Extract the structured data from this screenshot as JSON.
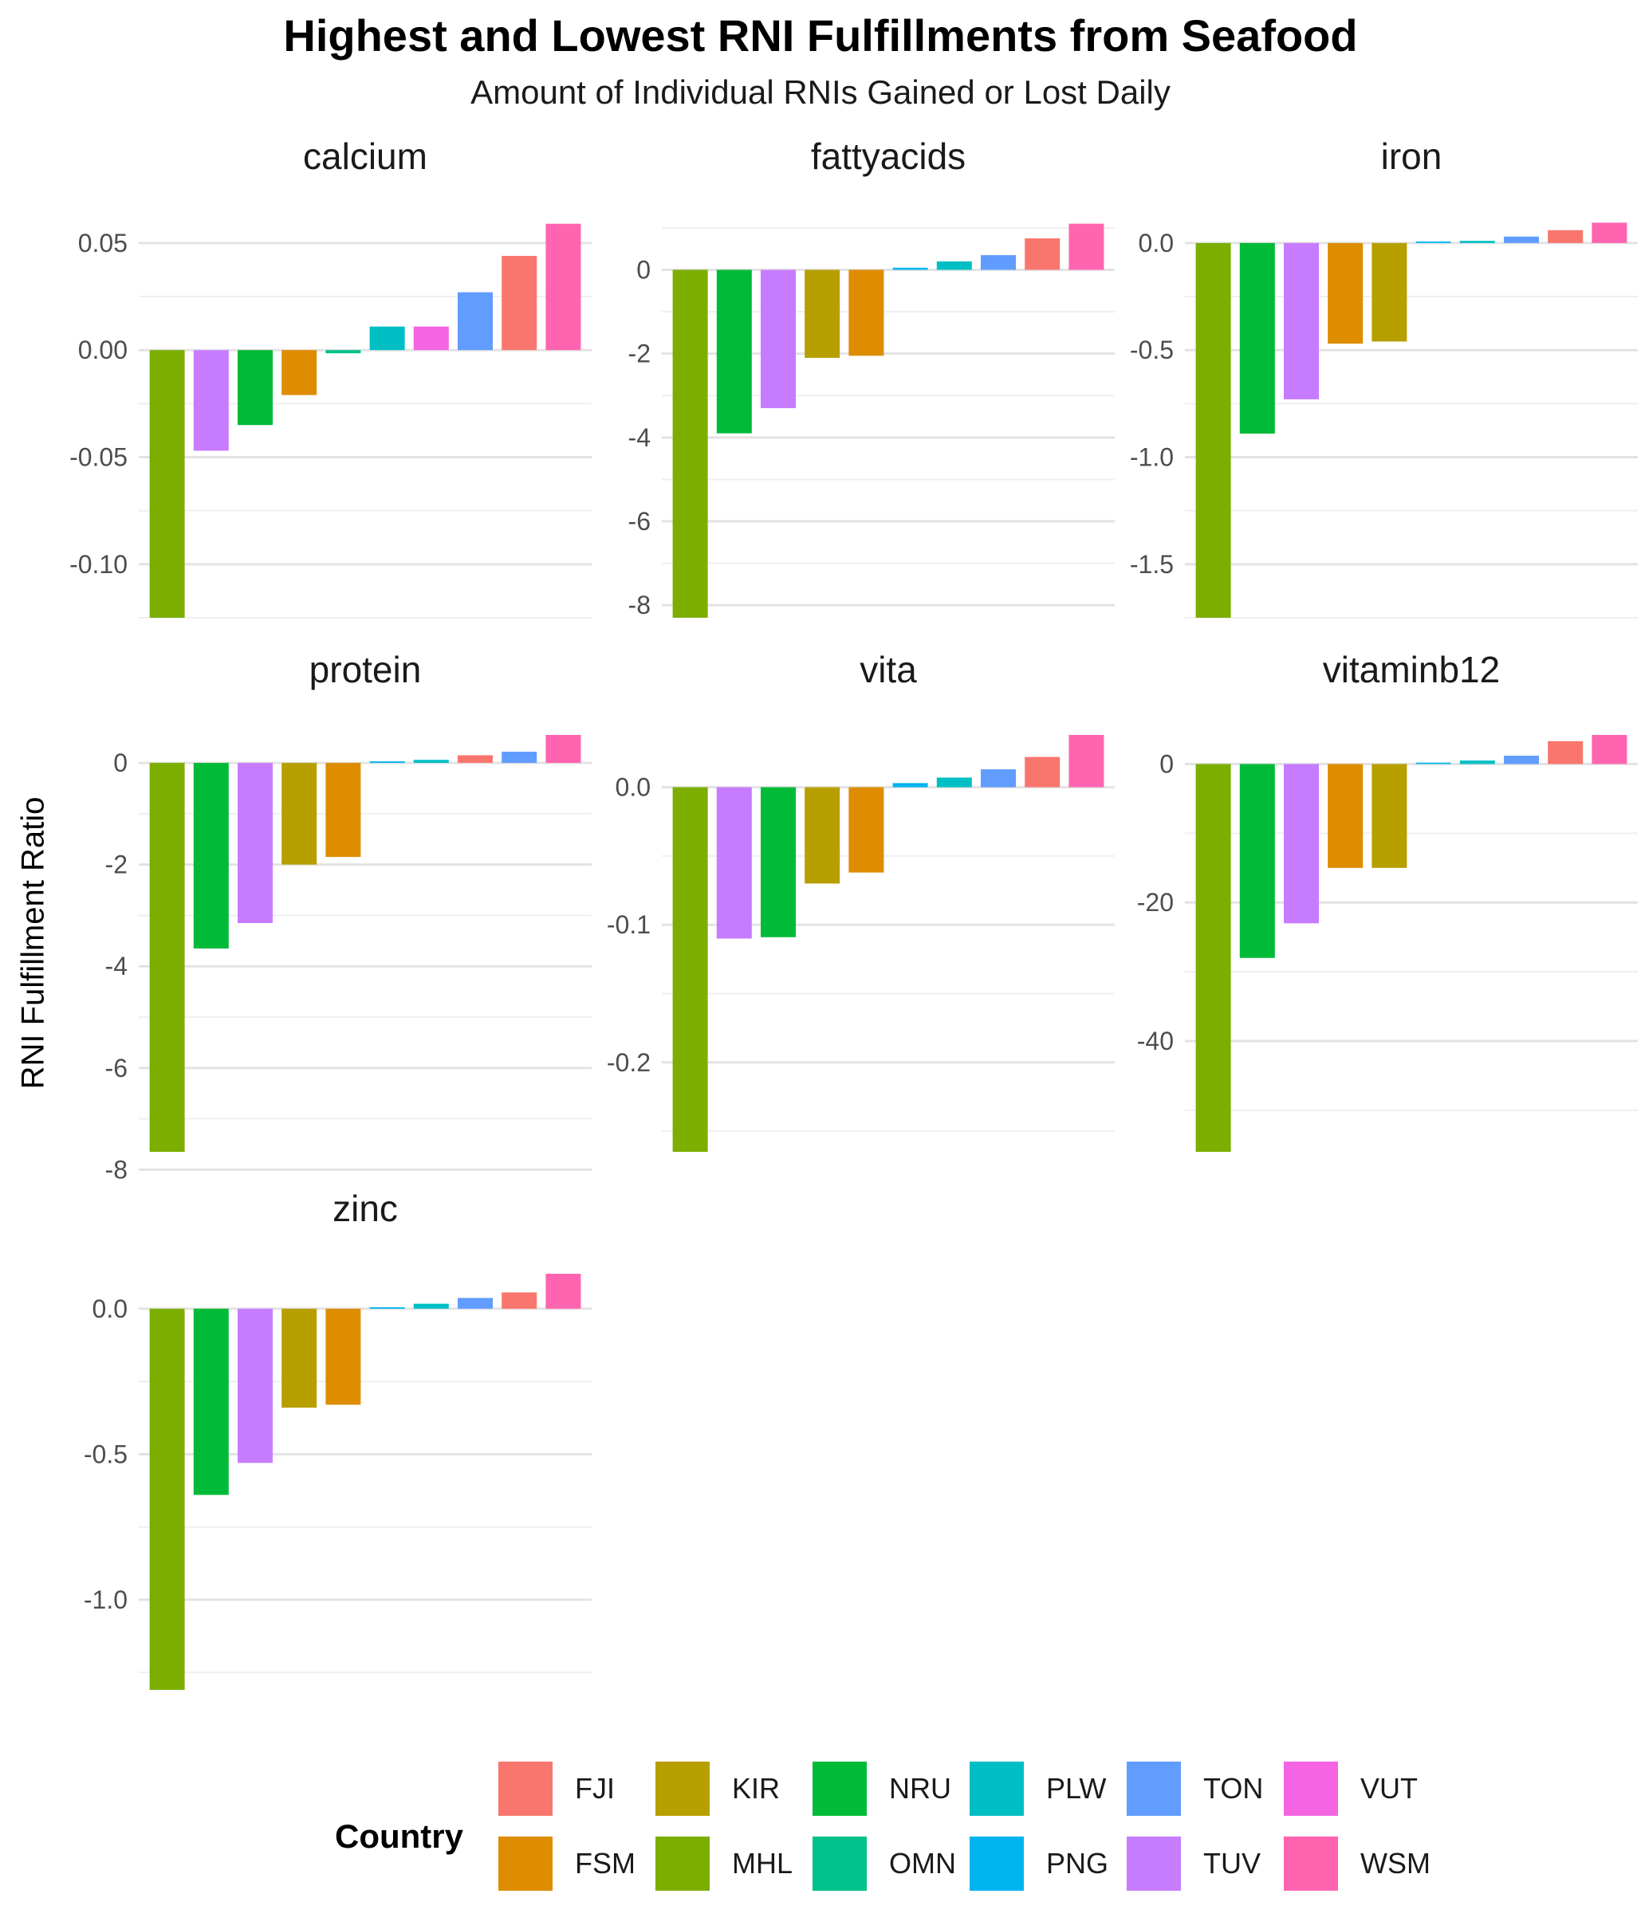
{
  "chart_data": {
    "type": "bar",
    "title": "Highest and Lowest RNI Fulfillments from Seafood",
    "subtitle": "Amount of Individual RNIs Gained or Lost Daily",
    "ylabel": "RNI Fulfillment Ratio",
    "xlabel": "",
    "legend_title": "Country",
    "legend_position": "bottom",
    "colors": {
      "FJI": "#F8766D",
      "FSM": "#DE8C00",
      "KIR": "#B79F00",
      "MHL": "#7CAE00",
      "NRU": "#00BA38",
      "OMN": "#00C08B",
      "PLW": "#00BFC4",
      "PNG": "#00B4F0",
      "TON": "#619CFF",
      "TUV": "#C77CFF",
      "VUT": "#F564E3",
      "WSM": "#FF64B0"
    },
    "legend_order": [
      "FJI",
      "FSM",
      "KIR",
      "MHL",
      "NRU",
      "OMN",
      "PLW",
      "PNG",
      "TON",
      "TUV",
      "VUT",
      "WSM"
    ],
    "panels": [
      {
        "name": "calcium",
        "ylim": [
          -0.125,
          0.06
        ],
        "ticks": [
          0.05,
          0.0,
          -0.05,
          -0.1
        ],
        "tick_labels": [
          "0.05",
          "0.00",
          "-0.05",
          "-0.10"
        ],
        "bars": [
          {
            "country": "MHL",
            "value": -0.125
          },
          {
            "country": "TUV",
            "value": -0.047
          },
          {
            "country": "NRU",
            "value": -0.035
          },
          {
            "country": "FSM",
            "value": -0.021
          },
          {
            "country": "OMN",
            "value": -0.0015
          },
          {
            "country": "PLW",
            "value": 0.011
          },
          {
            "country": "VUT",
            "value": 0.011
          },
          {
            "country": "TON",
            "value": 0.027
          },
          {
            "country": "FJI",
            "value": 0.044
          },
          {
            "country": "WSM",
            "value": 0.059
          }
        ]
      },
      {
        "name": "fattyacids",
        "ylim": [
          -8.3,
          1.15
        ],
        "ticks": [
          0,
          -2,
          -4,
          -6,
          -8
        ],
        "tick_labels": [
          "0",
          "-2",
          "-4",
          "-6",
          "-8"
        ],
        "bars": [
          {
            "country": "MHL",
            "value": -8.3
          },
          {
            "country": "NRU",
            "value": -3.9
          },
          {
            "country": "TUV",
            "value": -3.3
          },
          {
            "country": "KIR",
            "value": -2.1
          },
          {
            "country": "FSM",
            "value": -2.05
          },
          {
            "country": "PNG",
            "value": 0.05
          },
          {
            "country": "PLW",
            "value": 0.2
          },
          {
            "country": "TON",
            "value": 0.35
          },
          {
            "country": "FJI",
            "value": 0.75
          },
          {
            "country": "WSM",
            "value": 1.1
          }
        ]
      },
      {
        "name": "iron",
        "ylim": [
          -1.75,
          0.1
        ],
        "ticks": [
          0.0,
          -0.5,
          -1.0,
          -1.5
        ],
        "tick_labels": [
          "0.0",
          "-0.5",
          "-1.0",
          "-1.5"
        ],
        "bars": [
          {
            "country": "MHL",
            "value": -1.75
          },
          {
            "country": "NRU",
            "value": -0.89
          },
          {
            "country": "TUV",
            "value": -0.73
          },
          {
            "country": "FSM",
            "value": -0.47
          },
          {
            "country": "KIR",
            "value": -0.46
          },
          {
            "country": "PNG",
            "value": 0.007
          },
          {
            "country": "PLW",
            "value": 0.01
          },
          {
            "country": "TON",
            "value": 0.03
          },
          {
            "country": "FJI",
            "value": 0.06
          },
          {
            "country": "WSM",
            "value": 0.095
          }
        ]
      },
      {
        "name": "protein",
        "ylim": [
          -7.65,
          0.55
        ],
        "ticks": [
          0,
          -2,
          -4,
          -6,
          -8
        ],
        "tick_labels": [
          "0",
          "-2",
          "-4",
          "-6",
          "-8"
        ],
        "bars": [
          {
            "country": "MHL",
            "value": -7.65
          },
          {
            "country": "NRU",
            "value": -3.65
          },
          {
            "country": "TUV",
            "value": -3.15
          },
          {
            "country": "KIR",
            "value": -2.0
          },
          {
            "country": "FSM",
            "value": -1.85
          },
          {
            "country": "PNG",
            "value": 0.03
          },
          {
            "country": "PLW",
            "value": 0.06
          },
          {
            "country": "FJI",
            "value": 0.15
          },
          {
            "country": "TON",
            "value": 0.22
          },
          {
            "country": "WSM",
            "value": 0.55
          }
        ]
      },
      {
        "name": "vita",
        "ylim": [
          -0.265,
          0.038
        ],
        "ticks": [
          0.0,
          -0.1,
          -0.2
        ],
        "tick_labels": [
          "0.0",
          "-0.1",
          "-0.2"
        ],
        "bars": [
          {
            "country": "MHL",
            "value": -0.265
          },
          {
            "country": "TUV",
            "value": -0.11
          },
          {
            "country": "NRU",
            "value": -0.109
          },
          {
            "country": "KIR",
            "value": -0.07
          },
          {
            "country": "FSM",
            "value": -0.062
          },
          {
            "country": "PNG",
            "value": 0.003
          },
          {
            "country": "PLW",
            "value": 0.007
          },
          {
            "country": "TON",
            "value": 0.013
          },
          {
            "country": "FJI",
            "value": 0.022
          },
          {
            "country": "WSM",
            "value": 0.038
          }
        ]
      },
      {
        "name": "vitaminb12",
        "ylim": [
          -56,
          4.2
        ],
        "ticks": [
          0,
          -20,
          -40
        ],
        "tick_labels": [
          "0",
          "-20",
          "-40"
        ],
        "bars": [
          {
            "country": "MHL",
            "value": -56
          },
          {
            "country": "NRU",
            "value": -28
          },
          {
            "country": "TUV",
            "value": -23
          },
          {
            "country": "FSM",
            "value": -15
          },
          {
            "country": "KIR",
            "value": -15
          },
          {
            "country": "PNG",
            "value": 0.2
          },
          {
            "country": "PLW",
            "value": 0.5
          },
          {
            "country": "TON",
            "value": 1.2
          },
          {
            "country": "FJI",
            "value": 3.3
          },
          {
            "country": "WSM",
            "value": 4.2
          }
        ]
      },
      {
        "name": "zinc",
        "ylim": [
          -1.31,
          0.12
        ],
        "ticks": [
          0.0,
          -0.5,
          -1.0
        ],
        "tick_labels": [
          "0.0",
          "-0.5",
          "-1.0"
        ],
        "bars": [
          {
            "country": "MHL",
            "value": -1.31
          },
          {
            "country": "NRU",
            "value": -0.64
          },
          {
            "country": "TUV",
            "value": -0.53
          },
          {
            "country": "KIR",
            "value": -0.34
          },
          {
            "country": "FSM",
            "value": -0.33
          },
          {
            "country": "PNG",
            "value": 0.005
          },
          {
            "country": "PLW",
            "value": 0.017
          },
          {
            "country": "TON",
            "value": 0.037
          },
          {
            "country": "FJI",
            "value": 0.056
          },
          {
            "country": "WSM",
            "value": 0.12
          }
        ]
      }
    ]
  }
}
